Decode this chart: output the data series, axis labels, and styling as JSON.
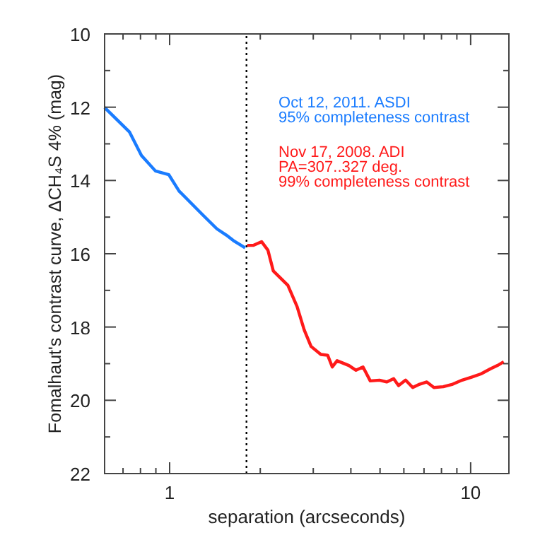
{
  "chart_data": {
    "type": "line",
    "xlabel": "separation (arcseconds)",
    "ylabel": "Fomalhaut's contrast curve, ΔCH₄S 4% (mag)",
    "log": "x",
    "xlim": [
      0.608,
      13.4
    ],
    "ylim": [
      22,
      10
    ],
    "xticks": [
      {
        "value": 0.7,
        "label": null
      },
      {
        "value": 0.8,
        "label": null
      },
      {
        "value": 0.9,
        "label": null
      },
      1,
      {
        "value": 2,
        "label": null
      },
      {
        "value": 3,
        "label": null
      },
      {
        "value": 4,
        "label": null
      },
      {
        "value": 5,
        "label": null
      },
      {
        "value": 6,
        "label": null
      },
      {
        "value": 7,
        "label": null
      },
      {
        "value": 8,
        "label": null
      },
      {
        "value": 9,
        "label": null
      },
      10
    ],
    "yticks": [
      10,
      {
        "value": 11,
        "label": null
      },
      12,
      {
        "value": 13,
        "label": null
      },
      14,
      {
        "value": 15,
        "label": null
      },
      16,
      {
        "value": 17,
        "label": null
      },
      18,
      {
        "value": 19,
        "label": null
      },
      20,
      {
        "value": 21,
        "label": null
      },
      22
    ],
    "grid": false,
    "legend": "top right",
    "line_style": "solid",
    "ref_lines": [
      {
        "axis": "x",
        "value": 1.8,
        "color": "#000000",
        "line_style": "dotted"
      }
    ],
    "series": [
      {
        "name": "Oct 12, 2011. ASDI\n95% completeness contrast",
        "color": "#1a7cff",
        "x": [
          0.608,
          0.736,
          0.806,
          0.897,
          0.993,
          1.075,
          1.288,
          1.435,
          1.542,
          1.628,
          1.782
        ],
        "values": [
          12.01,
          12.68,
          13.32,
          13.74,
          13.84,
          14.29,
          14.94,
          15.32,
          15.49,
          15.64,
          15.84
        ]
      },
      {
        "name": "Nov 17, 2008. ADI\nPA=307..327 deg.\n99% completeness contrast",
        "color": "#ff1a1a",
        "x": [
          1.81,
          1.9,
          2.02,
          2.12,
          2.21,
          2.47,
          2.65,
          2.8,
          2.95,
          3.18,
          3.35,
          3.47,
          3.6,
          3.94,
          4.16,
          4.39,
          4.64,
          4.98,
          5.26,
          5.55,
          5.76,
          6.08,
          6.42,
          6.77,
          7.15,
          7.55,
          8.11,
          8.72,
          9.37,
          10.07,
          10.82,
          11.64,
          12.28,
          12.88
        ],
        "values": [
          15.77,
          15.77,
          15.67,
          15.9,
          16.47,
          16.86,
          17.44,
          18.08,
          18.53,
          18.75,
          18.77,
          19.09,
          18.92,
          19.05,
          19.18,
          19.09,
          19.47,
          19.45,
          19.5,
          19.41,
          19.6,
          19.45,
          19.65,
          19.56,
          19.5,
          19.65,
          19.63,
          19.56,
          19.45,
          19.37,
          19.28,
          19.14,
          19.05,
          18.95
        ]
      }
    ]
  }
}
